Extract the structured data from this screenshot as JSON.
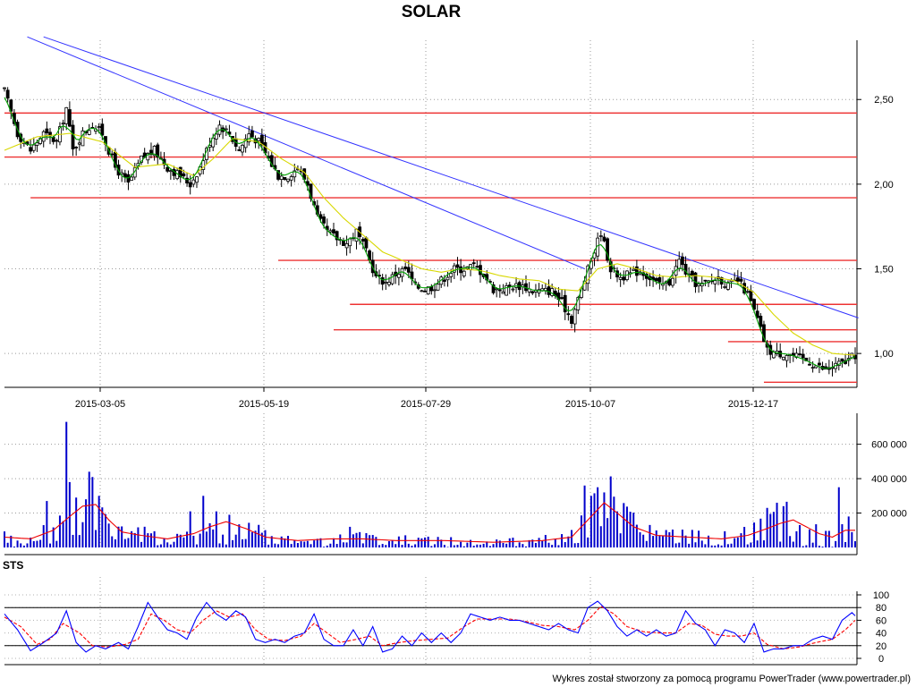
{
  "chart_data": [
    {
      "type": "candlestick",
      "title": "SOLAR",
      "x_tick_labels": [
        "2015-03-05",
        "2015-05-19",
        "2015-07-29",
        "2015-10-07",
        "2015-12-17"
      ],
      "y_tick_labels": [
        "2,50",
        "2,00",
        "1,50",
        "1,00"
      ],
      "y_ticks": [
        2.5,
        2.0,
        1.5,
        1.0
      ],
      "ylim": [
        0.8,
        2.85
      ],
      "grid": true,
      "close_path": [
        [
          0,
          2.55
        ],
        [
          4,
          2.3
        ],
        [
          8,
          2.2
        ],
        [
          12,
          2.3
        ],
        [
          16,
          2.25
        ],
        [
          19,
          2.45
        ],
        [
          21,
          2.2
        ],
        [
          24,
          2.3
        ],
        [
          27,
          2.35
        ],
        [
          30,
          2.3
        ],
        [
          34,
          2.1
        ],
        [
          38,
          2.0
        ],
        [
          42,
          2.15
        ],
        [
          46,
          2.2
        ],
        [
          50,
          2.1
        ],
        [
          54,
          2.05
        ],
        [
          57,
          2.0
        ],
        [
          60,
          2.1
        ],
        [
          63,
          2.25
        ],
        [
          66,
          2.35
        ],
        [
          69,
          2.3
        ],
        [
          72,
          2.2
        ],
        [
          75,
          2.3
        ],
        [
          78,
          2.25
        ],
        [
          81,
          2.15
        ],
        [
          84,
          2.05
        ],
        [
          87,
          2.05
        ],
        [
          90,
          2.1
        ],
        [
          93,
          2.0
        ],
        [
          96,
          1.8
        ],
        [
          99,
          1.72
        ],
        [
          102,
          1.68
        ],
        [
          105,
          1.65
        ],
        [
          108,
          1.72
        ],
        [
          111,
          1.6
        ],
        [
          114,
          1.45
        ],
        [
          117,
          1.42
        ],
        [
          120,
          1.47
        ],
        [
          123,
          1.5
        ],
        [
          126,
          1.4
        ],
        [
          129,
          1.38
        ],
        [
          132,
          1.4
        ],
        [
          135,
          1.45
        ],
        [
          138,
          1.5
        ],
        [
          141,
          1.5
        ],
        [
          144,
          1.52
        ],
        [
          147,
          1.47
        ],
        [
          150,
          1.38
        ],
        [
          153,
          1.38
        ],
        [
          156,
          1.4
        ],
        [
          159,
          1.4
        ],
        [
          162,
          1.37
        ],
        [
          165,
          1.37
        ],
        [
          168,
          1.37
        ],
        [
          171,
          1.3
        ],
        [
          174,
          1.2
        ],
        [
          177,
          1.38
        ],
        [
          180,
          1.55
        ],
        [
          183,
          1.72
        ],
        [
          186,
          1.5
        ],
        [
          189,
          1.45
        ],
        [
          192,
          1.47
        ],
        [
          195,
          1.49
        ],
        [
          198,
          1.45
        ],
        [
          201,
          1.4
        ],
        [
          204,
          1.42
        ],
        [
          207,
          1.55
        ],
        [
          210,
          1.45
        ],
        [
          213,
          1.4
        ],
        [
          216,
          1.42
        ],
        [
          219,
          1.45
        ],
        [
          222,
          1.4
        ],
        [
          225,
          1.43
        ],
        [
          228,
          1.35
        ],
        [
          231,
          1.2
        ],
        [
          234,
          1.02
        ],
        [
          237,
          1.0
        ],
        [
          240,
          1.0
        ],
        [
          243,
          0.98
        ],
        [
          246,
          0.96
        ],
        [
          249,
          0.93
        ],
        [
          252,
          0.9
        ],
        [
          255,
          0.93
        ],
        [
          258,
          0.95
        ],
        [
          261,
          0.99
        ]
      ],
      "moving_average_path": [
        [
          0,
          2.2
        ],
        [
          10,
          2.28
        ],
        [
          20,
          2.3
        ],
        [
          30,
          2.25
        ],
        [
          40,
          2.1
        ],
        [
          50,
          2.12
        ],
        [
          58,
          2.05
        ],
        [
          64,
          2.15
        ],
        [
          70,
          2.27
        ],
        [
          78,
          2.25
        ],
        [
          85,
          2.15
        ],
        [
          92,
          2.07
        ],
        [
          98,
          1.92
        ],
        [
          104,
          1.8
        ],
        [
          110,
          1.7
        ],
        [
          116,
          1.6
        ],
        [
          122,
          1.55
        ],
        [
          128,
          1.5
        ],
        [
          134,
          1.48
        ],
        [
          140,
          1.5
        ],
        [
          146,
          1.49
        ],
        [
          152,
          1.46
        ],
        [
          158,
          1.44
        ],
        [
          164,
          1.43
        ],
        [
          170,
          1.38
        ],
        [
          176,
          1.37
        ],
        [
          182,
          1.5
        ],
        [
          188,
          1.53
        ],
        [
          194,
          1.5
        ],
        [
          200,
          1.46
        ],
        [
          206,
          1.45
        ],
        [
          212,
          1.46
        ],
        [
          218,
          1.45
        ],
        [
          224,
          1.43
        ],
        [
          230,
          1.36
        ],
        [
          236,
          1.23
        ],
        [
          242,
          1.12
        ],
        [
          248,
          1.05
        ],
        [
          254,
          1.0
        ],
        [
          261,
          0.99
        ]
      ],
      "horizontal_levels": [
        {
          "y": 2.42,
          "from": 0,
          "to": 261
        },
        {
          "y": 2.16,
          "from": 0,
          "to": 261
        },
        {
          "y": 1.92,
          "from": 8,
          "to": 261
        },
        {
          "y": 1.55,
          "from": 84,
          "to": 261
        },
        {
          "y": 1.29,
          "from": 106,
          "to": 261
        },
        {
          "y": 1.14,
          "from": 101,
          "to": 261
        },
        {
          "y": 1.07,
          "from": 222,
          "to": 261
        },
        {
          "y": 0.83,
          "from": 233,
          "to": 261
        }
      ],
      "trend_lines": [
        {
          "from": [
            7,
            2.87
          ],
          "to": [
            178,
            1.5
          ]
        },
        {
          "from": [
            12,
            2.87
          ],
          "to": [
            262,
            1.21
          ]
        }
      ],
      "colors": {
        "candle": "#000000",
        "moving_average": "#d8d800",
        "short_average": "#00a000",
        "levels": "#ee3333",
        "trend": "#3333ff"
      }
    },
    {
      "type": "bar",
      "name": "volume",
      "y_tick_labels": [
        "600 000",
        "400 000",
        "200 000"
      ],
      "y_ticks": [
        600000,
        400000,
        200000
      ],
      "ylim": [
        0,
        780000
      ],
      "spikes": [
        [
          4,
          40000
        ],
        [
          13,
          270000
        ],
        [
          19,
          730000
        ],
        [
          20,
          380000
        ],
        [
          22,
          290000
        ],
        [
          25,
          280000
        ],
        [
          29,
          300000
        ],
        [
          57,
          210000
        ],
        [
          61,
          300000
        ],
        [
          69,
          190000
        ],
        [
          106,
          120000
        ],
        [
          178,
          360000
        ],
        [
          180,
          300000
        ],
        [
          182,
          350000
        ],
        [
          184,
          320000
        ],
        [
          234,
          230000
        ],
        [
          237,
          260000
        ],
        [
          239,
          240000
        ],
        [
          256,
          350000
        ],
        [
          259,
          180000
        ]
      ],
      "average_path": [
        [
          0,
          60000
        ],
        [
          8,
          50000
        ],
        [
          15,
          100000
        ],
        [
          20,
          180000
        ],
        [
          24,
          240000
        ],
        [
          28,
          250000
        ],
        [
          32,
          160000
        ],
        [
          36,
          90000
        ],
        [
          42,
          70000
        ],
        [
          50,
          50000
        ],
        [
          58,
          80000
        ],
        [
          63,
          120000
        ],
        [
          68,
          150000
        ],
        [
          74,
          110000
        ],
        [
          80,
          60000
        ],
        [
          90,
          40000
        ],
        [
          100,
          50000
        ],
        [
          110,
          50000
        ],
        [
          120,
          40000
        ],
        [
          135,
          40000
        ],
        [
          150,
          30000
        ],
        [
          165,
          40000
        ],
        [
          174,
          60000
        ],
        [
          180,
          180000
        ],
        [
          184,
          260000
        ],
        [
          188,
          200000
        ],
        [
          193,
          120000
        ],
        [
          200,
          70000
        ],
        [
          210,
          60000
        ],
        [
          220,
          50000
        ],
        [
          228,
          70000
        ],
        [
          234,
          110000
        ],
        [
          238,
          140000
        ],
        [
          242,
          160000
        ],
        [
          246,
          120000
        ],
        [
          250,
          80000
        ],
        [
          254,
          60000
        ],
        [
          258,
          100000
        ],
        [
          261,
          100000
        ]
      ],
      "colors": {
        "bars": "#0000cc",
        "average": "#ee0000"
      }
    },
    {
      "type": "line",
      "name": "STS",
      "y_tick_labels": [
        "100",
        "80",
        "60",
        "40",
        "20",
        "0"
      ],
      "y_ticks": [
        100,
        80,
        60,
        40,
        20,
        0
      ],
      "levels": [
        80,
        20
      ],
      "ylim": [
        0,
        100
      ],
      "k_path": [
        [
          0,
          70
        ],
        [
          4,
          45
        ],
        [
          8,
          12
        ],
        [
          12,
          25
        ],
        [
          16,
          40
        ],
        [
          19,
          75
        ],
        [
          22,
          25
        ],
        [
          25,
          10
        ],
        [
          28,
          20
        ],
        [
          31,
          15
        ],
        [
          35,
          25
        ],
        [
          38,
          15
        ],
        [
          41,
          50
        ],
        [
          44,
          88
        ],
        [
          47,
          65
        ],
        [
          50,
          45
        ],
        [
          53,
          40
        ],
        [
          56,
          30
        ],
        [
          59,
          65
        ],
        [
          62,
          88
        ],
        [
          65,
          70
        ],
        [
          68,
          60
        ],
        [
          71,
          75
        ],
        [
          74,
          65
        ],
        [
          77,
          30
        ],
        [
          80,
          25
        ],
        [
          83,
          30
        ],
        [
          86,
          25
        ],
        [
          89,
          35
        ],
        [
          92,
          40
        ],
        [
          95,
          70
        ],
        [
          98,
          30
        ],
        [
          101,
          20
        ],
        [
          104,
          20
        ],
        [
          107,
          45
        ],
        [
          110,
          20
        ],
        [
          113,
          50
        ],
        [
          116,
          10
        ],
        [
          119,
          15
        ],
        [
          122,
          35
        ],
        [
          125,
          20
        ],
        [
          128,
          40
        ],
        [
          131,
          25
        ],
        [
          134,
          40
        ],
        [
          137,
          25
        ],
        [
          140,
          40
        ],
        [
          143,
          70
        ],
        [
          146,
          65
        ],
        [
          149,
          60
        ],
        [
          152,
          65
        ],
        [
          155,
          60
        ],
        [
          158,
          60
        ],
        [
          161,
          55
        ],
        [
          164,
          50
        ],
        [
          167,
          45
        ],
        [
          170,
          55
        ],
        [
          173,
          45
        ],
        [
          176,
          40
        ],
        [
          179,
          80
        ],
        [
          182,
          90
        ],
        [
          185,
          75
        ],
        [
          188,
          50
        ],
        [
          191,
          35
        ],
        [
          194,
          45
        ],
        [
          197,
          35
        ],
        [
          200,
          45
        ],
        [
          203,
          35
        ],
        [
          206,
          40
        ],
        [
          209,
          75
        ],
        [
          212,
          55
        ],
        [
          215,
          45
        ],
        [
          218,
          20
        ],
        [
          221,
          45
        ],
        [
          224,
          40
        ],
        [
          227,
          25
        ],
        [
          230,
          55
        ],
        [
          233,
          10
        ],
        [
          236,
          15
        ],
        [
          239,
          15
        ],
        [
          242,
          20
        ],
        [
          245,
          20
        ],
        [
          248,
          30
        ],
        [
          251,
          35
        ],
        [
          254,
          30
        ],
        [
          257,
          60
        ],
        [
          260,
          72
        ],
        [
          262,
          62
        ]
      ],
      "d_path": [
        [
          0,
          65
        ],
        [
          5,
          50
        ],
        [
          10,
          22
        ],
        [
          14,
          30
        ],
        [
          18,
          55
        ],
        [
          23,
          40
        ],
        [
          27,
          20
        ],
        [
          32,
          18
        ],
        [
          37,
          22
        ],
        [
          41,
          30
        ],
        [
          45,
          70
        ],
        [
          49,
          60
        ],
        [
          53,
          45
        ],
        [
          57,
          40
        ],
        [
          61,
          60
        ],
        [
          65,
          75
        ],
        [
          69,
          65
        ],
        [
          73,
          70
        ],
        [
          77,
          45
        ],
        [
          81,
          30
        ],
        [
          86,
          28
        ],
        [
          91,
          35
        ],
        [
          95,
          55
        ],
        [
          99,
          40
        ],
        [
          103,
          25
        ],
        [
          108,
          30
        ],
        [
          112,
          35
        ],
        [
          116,
          20
        ],
        [
          121,
          25
        ],
        [
          126,
          28
        ],
        [
          131,
          30
        ],
        [
          136,
          32
        ],
        [
          141,
          50
        ],
        [
          145,
          62
        ],
        [
          150,
          62
        ],
        [
          155,
          62
        ],
        [
          160,
          58
        ],
        [
          165,
          52
        ],
        [
          170,
          50
        ],
        [
          175,
          45
        ],
        [
          179,
          60
        ],
        [
          183,
          82
        ],
        [
          187,
          70
        ],
        [
          191,
          50
        ],
        [
          196,
          42
        ],
        [
          201,
          40
        ],
        [
          206,
          40
        ],
        [
          210,
          55
        ],
        [
          214,
          52
        ],
        [
          218,
          38
        ],
        [
          222,
          35
        ],
        [
          226,
          35
        ],
        [
          230,
          40
        ],
        [
          234,
          22
        ],
        [
          239,
          15
        ],
        [
          244,
          18
        ],
        [
          249,
          25
        ],
        [
          254,
          30
        ],
        [
          258,
          45
        ],
        [
          262,
          65
        ]
      ],
      "colors": {
        "k": "#0000ff",
        "d": "#ff0000",
        "levels": "#000000"
      }
    }
  ],
  "header": {
    "title": "SOLAR"
  },
  "sts_label": "STS",
  "footer": {
    "credit": "Wykres został stworzony za pomocą programu PowerTrader (www.powertrader.pl)"
  }
}
